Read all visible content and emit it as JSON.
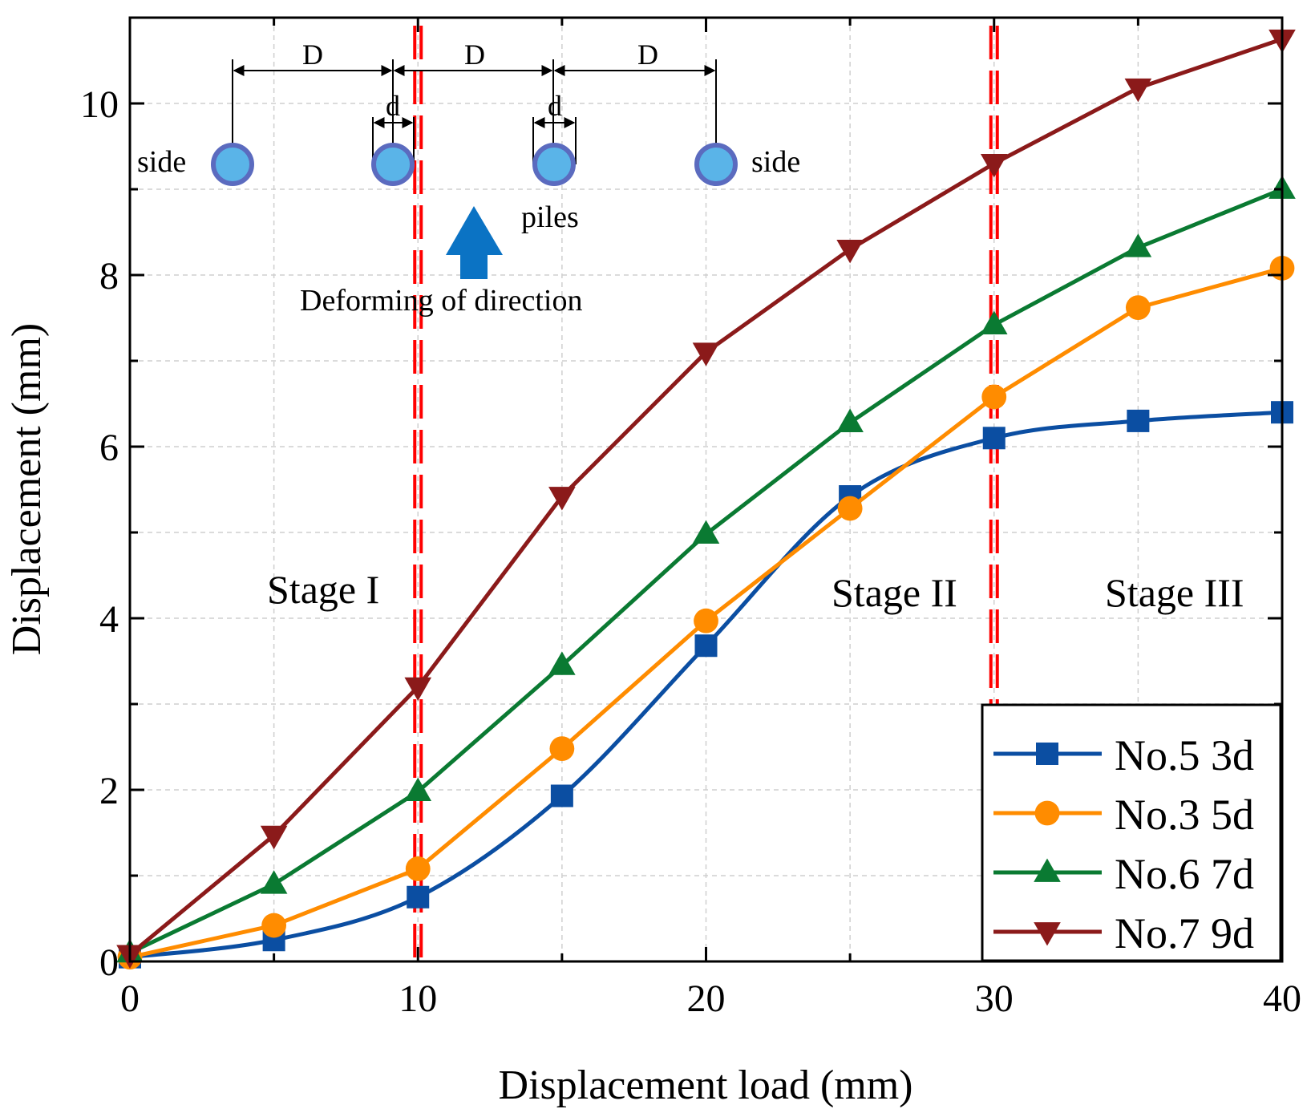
{
  "chart_data": {
    "type": "line",
    "xlabel": "Displacement load (mm)",
    "ylabel": "Displacement (mm)",
    "xlim": [
      0,
      40
    ],
    "ylim": [
      0,
      11
    ],
    "xticks": [
      0,
      10,
      20,
      30,
      40
    ],
    "yticks": [
      0,
      2,
      4,
      6,
      8,
      10
    ],
    "grid": true,
    "legend_position": "bottom-right",
    "x": [
      0,
      5,
      10,
      15,
      20,
      25,
      30,
      35,
      40
    ],
    "series": [
      {
        "name": "No.5 3d",
        "color": "#0b4ea2",
        "marker": "square",
        "smooth": true,
        "values": [
          0.05,
          0.25,
          0.75,
          1.93,
          3.68,
          5.42,
          6.1,
          6.3,
          6.4
        ]
      },
      {
        "name": "No.3 5d",
        "color": "#ff8c00",
        "marker": "circle",
        "smooth": false,
        "values": [
          0.05,
          0.42,
          1.08,
          2.48,
          3.97,
          5.28,
          6.58,
          7.62,
          8.08
        ]
      },
      {
        "name": "No.6 7d",
        "color": "#0a7a32",
        "marker": "triangle-up",
        "smooth": false,
        "values": [
          0.1,
          0.9,
          1.98,
          3.45,
          4.98,
          6.28,
          7.42,
          8.32,
          9.0
        ]
      },
      {
        "name": "No.7 9d",
        "color": "#8b1a1a",
        "marker": "triangle-down",
        "smooth": false,
        "values": [
          0.08,
          1.47,
          3.2,
          5.42,
          7.1,
          8.3,
          9.3,
          10.18,
          10.75
        ]
      }
    ],
    "stage_dividers": [
      10,
      30
    ],
    "stage_divider_color": "#ff0000",
    "annotations": {
      "stage1": "Stage I",
      "stage2": "Stage II",
      "stage3": "Stage III",
      "spacing": "D",
      "diameter": "d",
      "side": "side",
      "piles": "piles",
      "direction": "Deforming of direction"
    },
    "pile_color": "#5ab4e8",
    "pile_border_color": "#5b6bbf",
    "arrow_color": "#0b73c4"
  }
}
